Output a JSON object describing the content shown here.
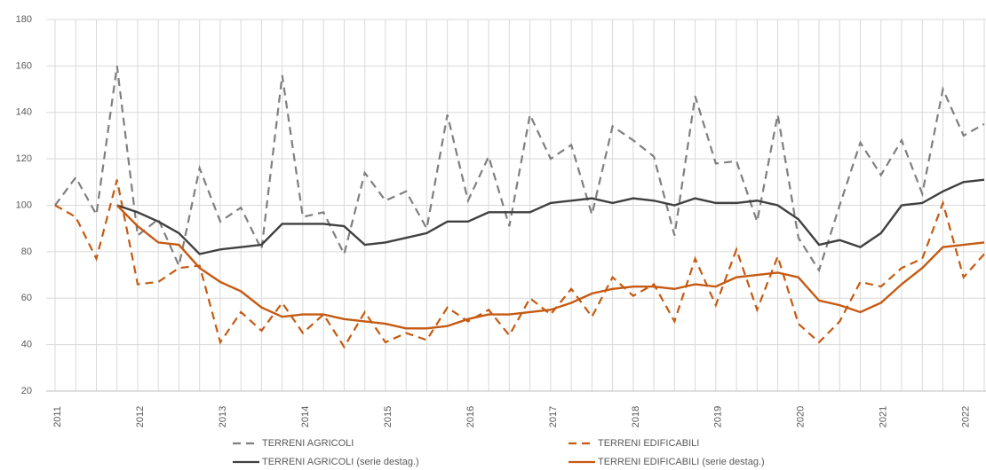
{
  "chart_data": {
    "type": "line",
    "categories": [
      "2011",
      null,
      null,
      null,
      "2012",
      null,
      null,
      null,
      "2013",
      null,
      null,
      null,
      "2014",
      null,
      null,
      null,
      "2015",
      null,
      null,
      null,
      "2016",
      null,
      null,
      null,
      "2017",
      null,
      null,
      null,
      "2018",
      null,
      null,
      null,
      "2019",
      null,
      null,
      null,
      "2020",
      null,
      null,
      null,
      "2021",
      null,
      null,
      null,
      "2022",
      null
    ],
    "series": [
      {
        "name": "TERRENI AGRICOLI",
        "color": "#7f7f7f",
        "dashed": true,
        "values": [
          100,
          112,
          96,
          160,
          87,
          94,
          74,
          116,
          93,
          99,
          81,
          156,
          95,
          97,
          79,
          114,
          102,
          106,
          90,
          139,
          102,
          121,
          91,
          139,
          120,
          126,
          96,
          134,
          128,
          121,
          87,
          147,
          118,
          119,
          93,
          139,
          86,
          72,
          100,
          127,
          113,
          128,
          105,
          150,
          130,
          135
        ]
      },
      {
        "name": "TERRENI EDIFICABILI",
        "color": "#c55a11",
        "dashed": true,
        "values": [
          100,
          95,
          77,
          111,
          66,
          67,
          73,
          74,
          41,
          54,
          46,
          58,
          45,
          53,
          39,
          54,
          41,
          45,
          42,
          56,
          50,
          55,
          44,
          60,
          53,
          64,
          52,
          69,
          61,
          66,
          50,
          77,
          57,
          81,
          55,
          78,
          49,
          41,
          50,
          67,
          65,
          73,
          77,
          101,
          69,
          79
        ]
      },
      {
        "name": "TERRENI AGRICOLI (serie destag.)",
        "color": "#404040",
        "dashed": false,
        "values": [
          null,
          null,
          null,
          100,
          97,
          93,
          88,
          79,
          81,
          82,
          83,
          92,
          92,
          92,
          91,
          83,
          84,
          86,
          88,
          93,
          93,
          97,
          97,
          97,
          101,
          102,
          103,
          101,
          103,
          102,
          100,
          103,
          101,
          101,
          102,
          100,
          94,
          83,
          85,
          82,
          88,
          100,
          101,
          106,
          110,
          111
        ]
      },
      {
        "name": "TERRENI EDIFICABILI (serie destag.)",
        "color": "#c55a11",
        "dashed": false,
        "values": [
          null,
          null,
          null,
          100,
          91,
          84,
          83,
          73,
          67,
          63,
          56,
          52,
          53,
          53,
          51,
          50,
          49,
          47,
          47,
          48,
          51,
          53,
          53,
          54,
          55,
          58,
          62,
          64,
          65,
          65,
          64,
          66,
          65,
          69,
          70,
          71,
          69,
          59,
          57,
          54,
          58,
          66,
          73,
          82,
          83,
          84
        ]
      }
    ],
    "ylim": [
      20,
      180
    ],
    "yticks": [
      20,
      40,
      60,
      80,
      100,
      120,
      140,
      160,
      180
    ],
    "grid": true
  }
}
